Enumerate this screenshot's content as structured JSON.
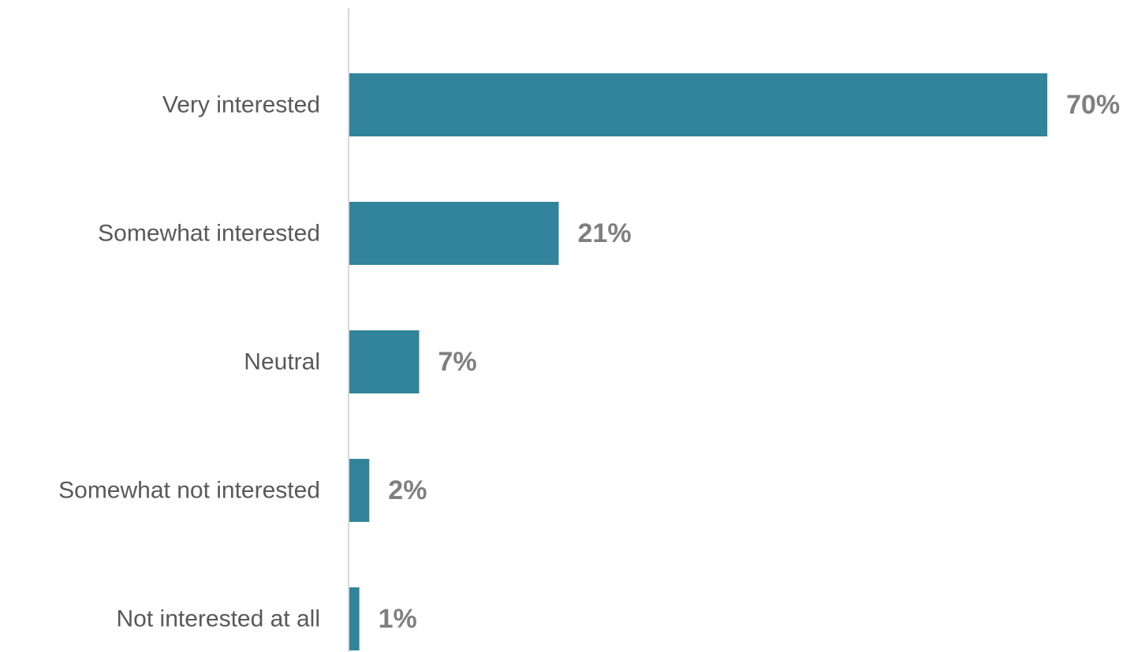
{
  "chart_data": {
    "type": "bar",
    "orientation": "horizontal",
    "categories": [
      "Very interested",
      "Somewhat interested",
      "Neutral",
      "Somewhat not interested",
      "Not interested at all"
    ],
    "values": [
      70,
      21,
      7,
      2,
      1
    ],
    "value_labels": [
      "70%",
      "21%",
      "7%",
      "2%",
      "1%"
    ],
    "unit": "%",
    "xlim": [
      0,
      70
    ],
    "grid": false,
    "legend": "none",
    "bar_color": "#31849b",
    "axis_color": "#d9d9d9",
    "category_label_color": "#595959",
    "value_label_color": "#7f7f7f"
  }
}
